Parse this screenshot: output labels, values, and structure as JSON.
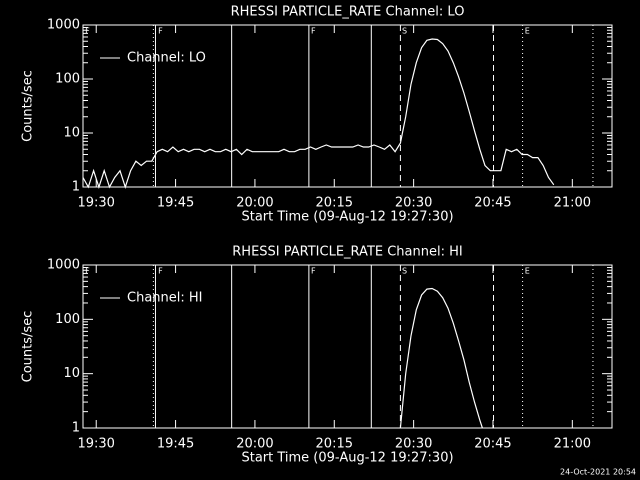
{
  "footer": "24-Oct-2021 20:54",
  "chart_data": [
    {
      "type": "line",
      "title": "RHESSI PARTICLE_RATE Channel: LO",
      "xlabel": "Start Time (09-Aug-12 19:27:30)",
      "ylabel": "Counts/sec",
      "log_y": true,
      "legend": "upper left",
      "xlim": [
        0,
        100
      ],
      "ylim": [
        1,
        1000
      ],
      "yticks": [
        1,
        10,
        100,
        1000
      ],
      "xticks": [
        {
          "value": 2.5,
          "label": "19:30"
        },
        {
          "value": 17.5,
          "label": "19:45"
        },
        {
          "value": 32.5,
          "label": "20:00"
        },
        {
          "value": 47.5,
          "label": "20:15"
        },
        {
          "value": 62.5,
          "label": "20:30"
        },
        {
          "value": 77.5,
          "label": "20:45"
        },
        {
          "value": 92.5,
          "label": "21:00"
        }
      ],
      "vlines": [
        {
          "x": 13.3,
          "style": "dotted"
        },
        {
          "x": 13.7,
          "style": "solid"
        },
        {
          "x": 28.1,
          "style": "solid"
        },
        {
          "x": 42.7,
          "style": "solid"
        },
        {
          "x": 54.5,
          "style": "solid"
        },
        {
          "x": 60.0,
          "style": "dashed"
        },
        {
          "x": 77.6,
          "style": "dashed"
        },
        {
          "x": 83.1,
          "style": "dotted"
        },
        {
          "x": 96.4,
          "style": "dotted"
        }
      ],
      "flags": [
        {
          "x": 0.4,
          "label": "F"
        },
        {
          "x": 14.2,
          "label": "F"
        },
        {
          "x": 43.1,
          "label": "F"
        },
        {
          "x": 60.3,
          "label": "S"
        },
        {
          "x": 83.5,
          "label": "E"
        }
      ],
      "series": [
        {
          "name": "Channel: LO",
          "color": "#ffffff",
          "x": [
            0,
            1,
            2,
            3,
            4,
            5,
            6,
            7,
            8,
            9,
            10,
            11,
            12,
            13,
            14,
            15,
            16,
            17,
            18,
            19,
            20,
            21,
            22,
            23,
            24,
            25,
            26,
            27,
            28,
            29,
            30,
            31,
            32,
            33,
            34,
            35,
            36,
            37,
            38,
            39,
            40,
            41,
            42,
            43,
            44,
            45,
            46,
            47,
            48,
            49,
            50,
            51,
            52,
            53,
            54,
            55,
            56,
            57,
            58,
            59,
            60,
            61,
            62,
            63,
            64,
            65,
            66,
            67,
            68,
            69,
            70,
            71,
            72,
            73,
            74,
            75,
            76,
            77,
            78,
            79,
            80,
            81,
            82,
            83,
            84,
            85,
            86,
            87,
            88,
            89
          ],
          "values": [
            1.5,
            1,
            2,
            1,
            2,
            1,
            1.5,
            2,
            1,
            2,
            3,
            2.5,
            3,
            3,
            4.5,
            5,
            4.5,
            5.5,
            4.5,
            5,
            4.5,
            5,
            5,
            4.5,
            5,
            4.5,
            4.5,
            5,
            4.5,
            5,
            4,
            5,
            4.5,
            4.5,
            4.5,
            4.5,
            4.5,
            4.5,
            5,
            4.5,
            4.5,
            5,
            5,
            5.5,
            5,
            5.5,
            6,
            5.5,
            5.5,
            5.5,
            5.5,
            5.5,
            6,
            5.5,
            5.5,
            6,
            5.5,
            5,
            6,
            4.5,
            6.5,
            20,
            80,
            200,
            380,
            520,
            550,
            540,
            450,
            330,
            200,
            110,
            55,
            25,
            11,
            5,
            2.5,
            2,
            2,
            2,
            5,
            4.5,
            5,
            4,
            4,
            3.5,
            3.5,
            2.5,
            1.5,
            1.1
          ]
        }
      ]
    },
    {
      "type": "line",
      "title": "RHESSI PARTICLE_RATE Channel: HI",
      "xlabel": "Start Time (09-Aug-12 19:27:30)",
      "ylabel": "Counts/sec",
      "log_y": true,
      "legend": "upper left",
      "xlim": [
        0,
        100
      ],
      "ylim": [
        1,
        1000
      ],
      "yticks": [
        1,
        10,
        100,
        1000
      ],
      "xticks": [
        {
          "value": 2.5,
          "label": "19:30"
        },
        {
          "value": 17.5,
          "label": "19:45"
        },
        {
          "value": 32.5,
          "label": "20:00"
        },
        {
          "value": 47.5,
          "label": "20:15"
        },
        {
          "value": 62.5,
          "label": "20:30"
        },
        {
          "value": 77.5,
          "label": "20:45"
        },
        {
          "value": 92.5,
          "label": "21:00"
        }
      ],
      "vlines": [
        {
          "x": 13.3,
          "style": "dotted"
        },
        {
          "x": 13.7,
          "style": "solid"
        },
        {
          "x": 28.1,
          "style": "solid"
        },
        {
          "x": 42.7,
          "style": "solid"
        },
        {
          "x": 54.5,
          "style": "solid"
        },
        {
          "x": 60.0,
          "style": "dashed"
        },
        {
          "x": 77.6,
          "style": "dashed"
        },
        {
          "x": 83.1,
          "style": "dotted"
        },
        {
          "x": 96.4,
          "style": "dotted"
        }
      ],
      "flags": [
        {
          "x": 0.4,
          "label": "F"
        },
        {
          "x": 14.2,
          "label": "F"
        },
        {
          "x": 43.1,
          "label": "F"
        },
        {
          "x": 60.3,
          "label": "S"
        },
        {
          "x": 83.5,
          "label": "E"
        }
      ],
      "series": [
        {
          "name": "Channel: HI",
          "color": "#ffffff",
          "x": [
            60,
            61,
            62,
            63,
            64,
            65,
            66,
            67,
            68,
            69,
            70,
            71,
            72,
            73,
            74,
            75,
            75.5
          ],
          "values": [
            1,
            10,
            50,
            150,
            280,
            360,
            370,
            330,
            250,
            160,
            85,
            40,
            18,
            7,
            3,
            1.4,
            1
          ]
        }
      ]
    }
  ]
}
